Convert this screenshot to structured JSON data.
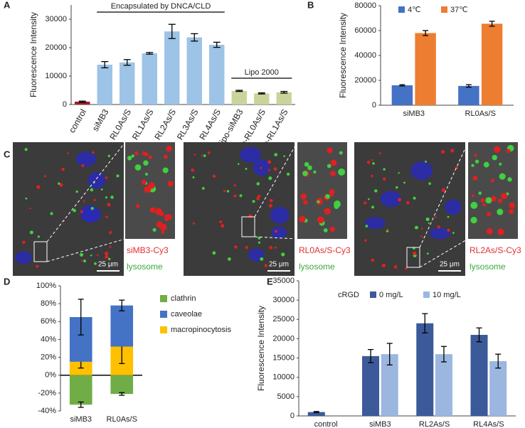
{
  "chart_data": [
    {
      "panel": "A",
      "type": "bar",
      "ylabel": "Fluorescence Intensity",
      "categories": [
        "control",
        "siMB3",
        "RL0As/S",
        "RL1As/S",
        "RL2As/S",
        "RL3As/S",
        "RL4As/S",
        "lipo-siMB3",
        "lipo-RL0As/S",
        "lipo-RL1As/S"
      ],
      "values": [
        1000,
        14000,
        14800,
        18000,
        25700,
        23600,
        21000,
        4800,
        3900,
        4300
      ],
      "errors": [
        200,
        1100,
        1000,
        300,
        2500,
        1300,
        900,
        200,
        200,
        300
      ],
      "colors": [
        "#a01d26",
        "#9dc3e6",
        "#9dc3e6",
        "#9dc3e6",
        "#9dc3e6",
        "#9dc3e6",
        "#9dc3e6",
        "#c9d49a",
        "#c9d49a",
        "#c9d49a"
      ],
      "ylim": [
        0,
        35000
      ],
      "yticks": [
        0,
        10000,
        20000,
        30000
      ],
      "annotations": [
        "Encapsulated by DNCA/CLD",
        "Lipo 2000"
      ]
    },
    {
      "panel": "B",
      "type": "grouped-bar",
      "ylabel": "Fluorescence Intensity",
      "categories": [
        "siMB3",
        "RL0As/S"
      ],
      "series": [
        {
          "name": "4℃",
          "color": "#4472c4",
          "values": [
            16000,
            15500
          ],
          "errors": [
            500,
            1000
          ]
        },
        {
          "name": "37℃",
          "color": "#ed7d31",
          "values": [
            58000,
            65500
          ],
          "errors": [
            2000,
            2000
          ]
        }
      ],
      "ylim": [
        0,
        80000
      ],
      "yticks": [
        0,
        20000,
        40000,
        60000,
        80000
      ]
    },
    {
      "panel": "D",
      "type": "stacked-bar",
      "categories": [
        "siMB3",
        "RL0As/S"
      ],
      "series": [
        {
          "name": "clathrin",
          "color": "#70ad47",
          "values": [
            -33,
            -21
          ],
          "errors": [
            3,
            1.5
          ]
        },
        {
          "name": "caveolae",
          "color": "#4472c4",
          "values": [
            50,
            46
          ],
          "errors": [
            20,
            6
          ]
        },
        {
          "name": "macropinocytosis",
          "color": "#ffc000",
          "values": [
            15,
            32
          ],
          "errors": [
            7,
            19
          ]
        }
      ],
      "ylim": [
        -40,
        100
      ],
      "yticks": [
        {
          "value": -40,
          "label": "-40%"
        },
        {
          "value": -20,
          "label": "-20%"
        },
        {
          "value": 0,
          "label": "0%"
        },
        {
          "value": 20,
          "label": "20%"
        },
        {
          "value": 40,
          "label": "40%"
        },
        {
          "value": 60,
          "label": "60%"
        },
        {
          "value": 80,
          "label": "80%"
        },
        {
          "value": 100,
          "label": "100%"
        }
      ]
    },
    {
      "panel": "E",
      "type": "grouped-bar",
      "ylabel": "Fluorescence Intensity",
      "legend_title": "cRGD",
      "categories": [
        "control",
        "siMB3",
        "RL2As/S",
        "RL4As/S"
      ],
      "series": [
        {
          "name": "0 mg/L",
          "color": "#3c5a99",
          "values": [
            1000,
            15500,
            24000,
            21000
          ],
          "errors": [
            150,
            1700,
            2500,
            1800
          ]
        },
        {
          "name": "10 mg/L",
          "color": "#9bb7e0",
          "values": [
            null,
            16000,
            16000,
            14200
          ],
          "errors": [
            null,
            2800,
            2000,
            1800
          ]
        }
      ],
      "ylim": [
        0,
        35000
      ],
      "yticks": [
        0,
        5000,
        10000,
        15000,
        20000,
        25000,
        30000,
        35000
      ]
    }
  ],
  "panel_c": {
    "panel": "C",
    "images": [
      {
        "probe": "siMB3-Cy3",
        "stain": "lysosome",
        "scale": "25 μm"
      },
      {
        "probe": "RL0As/S-Cy3",
        "stain": "lysosome",
        "scale": "25 μm"
      },
      {
        "probe": "RL2As/S-Cy3",
        "stain": "lysosome",
        "scale": "25 μm"
      }
    ]
  }
}
